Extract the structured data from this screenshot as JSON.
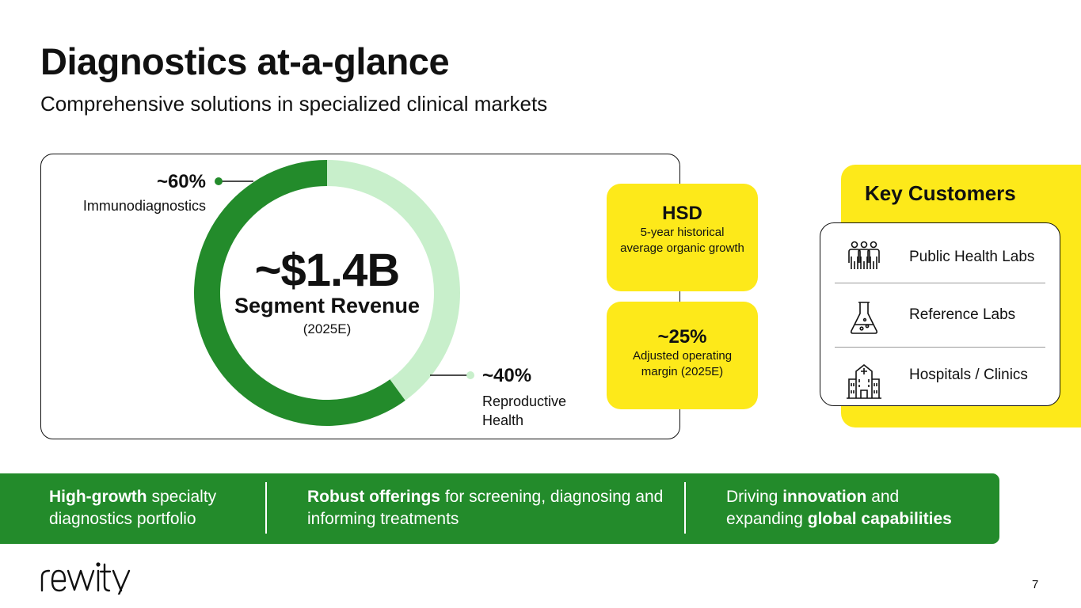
{
  "slide": {
    "title": "Diagnostics at-a-glance",
    "subtitle": "Comprehensive solutions in specialized clinical markets",
    "page_number": "7",
    "logo_text": "revvity"
  },
  "colors": {
    "dark_green": "#238b2b",
    "light_green": "#c8efcb",
    "yellow": "#fde91a"
  },
  "chart_data": {
    "type": "pie",
    "style": "donut",
    "categories": [
      "Immunodiagnostics",
      "Reproductive Health"
    ],
    "values": [
      60,
      40
    ],
    "value_labels": [
      "~60%",
      "~40%"
    ],
    "category_labels": [
      "Immunodiagnostics",
      "Reproductive Health"
    ],
    "colors": [
      "#238b2b",
      "#c8efcb"
    ],
    "center_value": "~$1.4B",
    "center_label": "Segment Revenue",
    "center_sublabel": "(2025E)"
  },
  "metrics": {
    "growth": {
      "value": "HSD",
      "label": "5-year historical average organic growth"
    },
    "margin": {
      "value": "~25%",
      "label": "Adjusted operating margin (2025E)"
    }
  },
  "key_customers": {
    "title": "Key Customers",
    "items": [
      {
        "label": "Public Health Labs",
        "icon": "people-group-icon"
      },
      {
        "label": "Reference Labs",
        "icon": "lab-flask-icon"
      },
      {
        "label": "Hospitals / Clinics",
        "icon": "hospital-icon"
      }
    ]
  },
  "highlights": [
    {
      "bold": "High-growth",
      "rest": " specialty diagnostics portfolio"
    },
    {
      "bold": "Robust offerings",
      "rest": " for screening, diagnosing and informing treatments"
    },
    {
      "pre": "Driving ",
      "bold": "innovation",
      "mid": " and expanding ",
      "bold2": "global capabilities"
    }
  ]
}
